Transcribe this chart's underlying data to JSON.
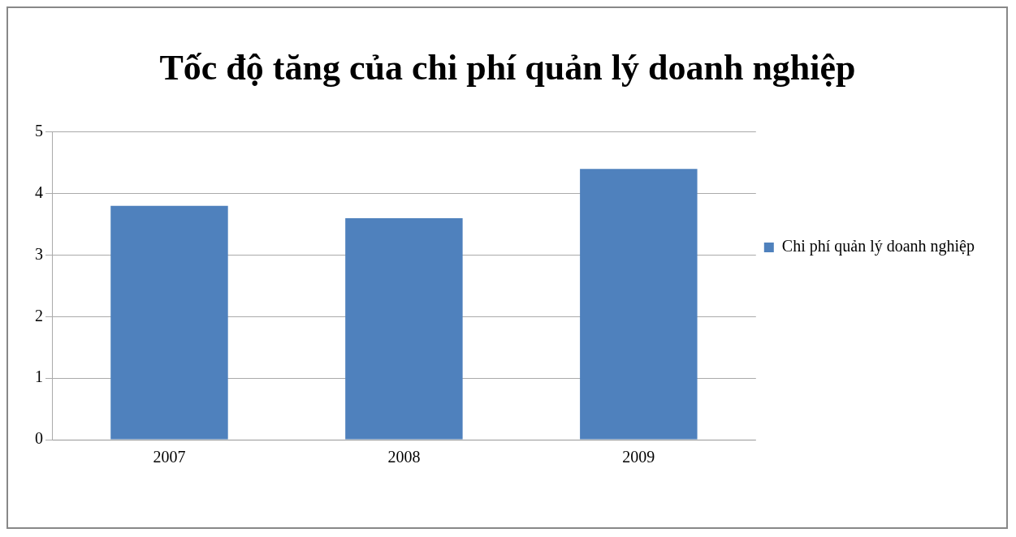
{
  "chart_data": {
    "type": "bar",
    "title": "Tốc độ tăng của chi phí quản lý doanh nghiệp",
    "categories": [
      "2007",
      "2008",
      "2009"
    ],
    "series": [
      {
        "name": "Chi phí quản lý doanh nghiệp",
        "color": "#4f81bd",
        "values": [
          3.8,
          3.6,
          4.4
        ]
      }
    ],
    "ylim": [
      0,
      5
    ],
    "yticks": [
      0,
      1,
      2,
      3,
      4,
      5
    ],
    "grid": "y",
    "legend": "right"
  }
}
